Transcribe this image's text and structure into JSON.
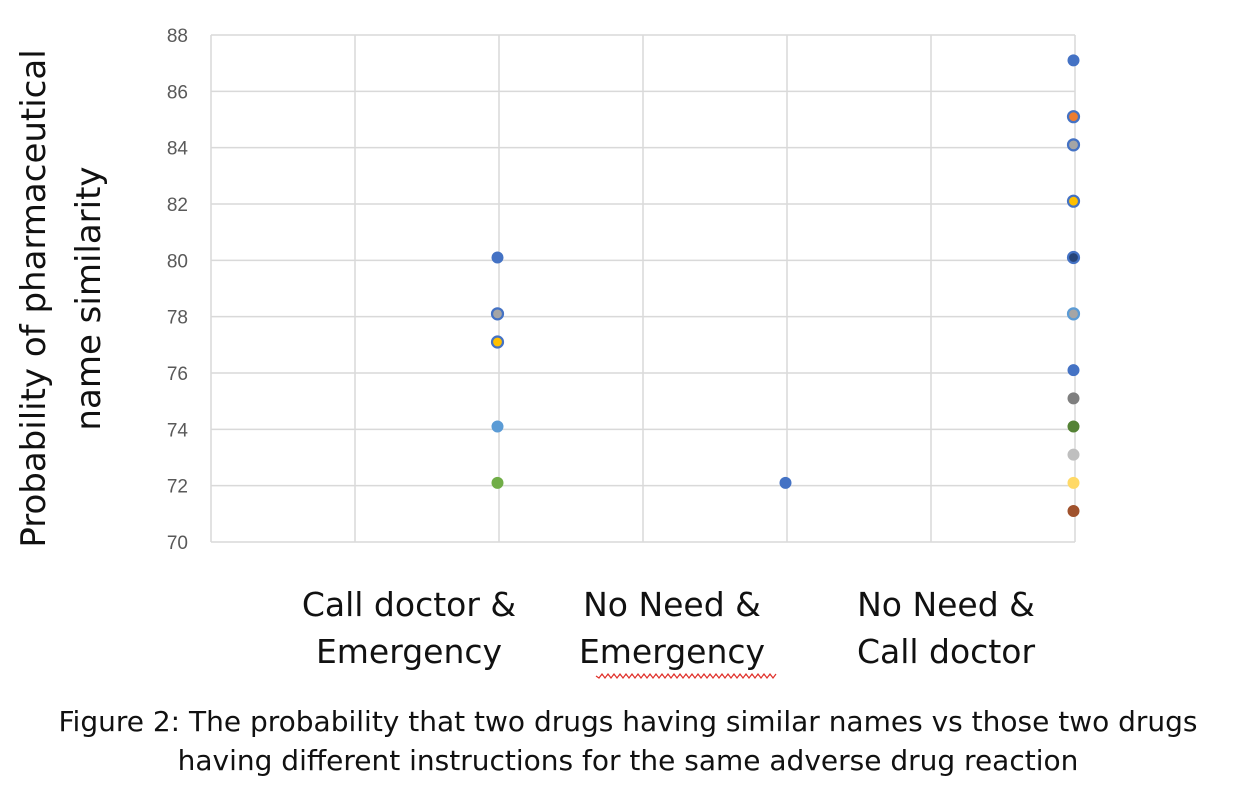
{
  "chart_data": {
    "type": "scatter",
    "title": "",
    "xlabel": "",
    "ylabel": "Probability of pharmaceutical name similarity",
    "ylabel_lines": [
      "Probability of pharmaceutical",
      "name similarity"
    ],
    "ylim": [
      70,
      88
    ],
    "yticks": [
      "70",
      "72",
      "74",
      "76",
      "78",
      "80",
      "82",
      "84",
      "86",
      "88"
    ],
    "grid": true,
    "legend": "none",
    "categories": [
      [
        "Call doctor &",
        "Emergency"
      ],
      [
        "No Need &",
        "Emergency"
      ],
      [
        "No Need &",
        "Call doctor"
      ]
    ],
    "points": [
      {
        "category": 0,
        "y": 80.1,
        "color": "#4472C4"
      },
      {
        "category": 0,
        "y": 78.1,
        "color": "#A5A5A5",
        "edge": "#4472C4"
      },
      {
        "category": 0,
        "y": 77.1,
        "color": "#FFC000",
        "edge": "#4472C4"
      },
      {
        "category": 0,
        "y": 74.1,
        "color": "#5B9BD5"
      },
      {
        "category": 0,
        "y": 72.1,
        "color": "#70AD47"
      },
      {
        "category": 1,
        "y": 72.1,
        "color": "#4472C4"
      },
      {
        "category": 2,
        "y": 87.1,
        "color": "#4472C4"
      },
      {
        "category": 2,
        "y": 85.1,
        "color": "#ED7D31",
        "edge": "#4472C4"
      },
      {
        "category": 2,
        "y": 84.1,
        "color": "#A5A5A5",
        "edge": "#4472C4"
      },
      {
        "category": 2,
        "y": 82.1,
        "color": "#FFC000",
        "edge": "#4472C4"
      },
      {
        "category": 2,
        "y": 80.1,
        "color": "#264478",
        "edge": "#4472C4"
      },
      {
        "category": 2,
        "y": 78.1,
        "color": "#A5A5A5",
        "edge": "#5B9BD5"
      },
      {
        "category": 2,
        "y": 76.1,
        "color": "#4472C4"
      },
      {
        "category": 2,
        "y": 75.1,
        "color": "#7F7F7F"
      },
      {
        "category": 2,
        "y": 74.1,
        "color": "#548235"
      },
      {
        "category": 2,
        "y": 73.1,
        "color": "#BFBFBF"
      },
      {
        "category": 2,
        "y": 72.1,
        "color": "#FFD966"
      },
      {
        "category": 2,
        "y": 71.1,
        "color": "#A0522D"
      }
    ]
  },
  "caption": {
    "line1": "Figure 2: The probability that two drugs having similar names vs those two drugs",
    "line2": "having different instructions for the same adverse drug reaction"
  }
}
